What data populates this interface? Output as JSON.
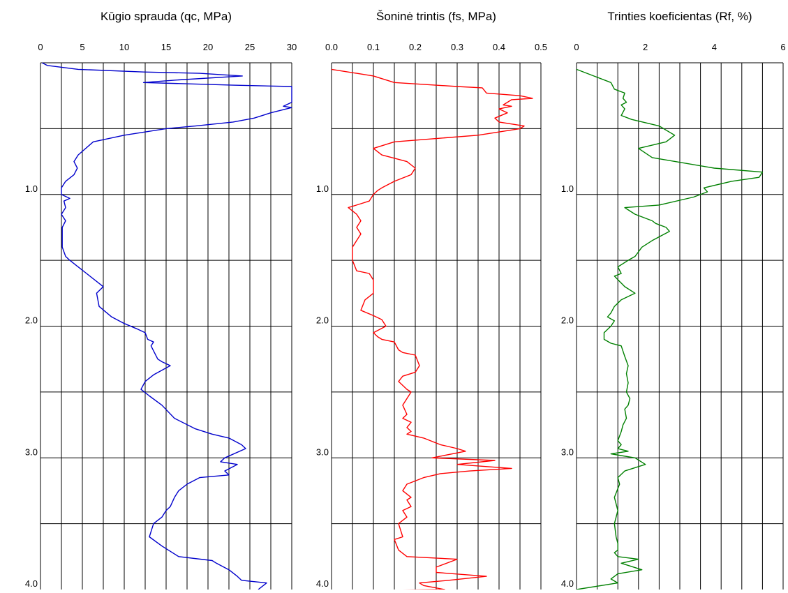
{
  "chart_data": [
    {
      "type": "line",
      "title": "Kūgio sprauda (qc, MPa)",
      "xlim": [
        0,
        30
      ],
      "ylim": [
        0,
        4.0
      ],
      "y_inverted": true,
      "grid": true,
      "xticks": [
        "0",
        "5",
        "10",
        "15",
        "20",
        "25",
        "30"
      ],
      "xtick_values": [
        0,
        5,
        10,
        15,
        20,
        25,
        30
      ],
      "yticks": [
        "1.0",
        "2.0",
        "3.0",
        "4.0"
      ],
      "ytick_values": [
        1.0,
        2.0,
        3.0,
        4.0
      ],
      "color": "#0000cc",
      "series": [
        {
          "x": [
            0.2,
            0.8,
            4.5,
            12.3,
            19.0,
            24.1,
            16.5,
            12.3,
            23.0,
            30.0,
            30.0,
            30.0,
            29.0,
            30.0,
            27.5,
            25.5,
            23.0,
            18.5,
            15.0,
            10.0,
            6.3,
            4.5,
            4.0,
            4.4,
            4.0,
            3.0,
            2.5,
            2.5,
            3.5,
            2.8,
            3.0,
            2.5,
            3.0,
            2.6,
            2.6,
            3.0,
            3.5,
            4.5,
            5.5,
            7.5,
            6.7,
            7.0,
            8.5,
            10.0,
            11.5,
            12.5,
            12.8,
            13.5,
            13.2,
            14.0,
            14.5,
            15.5,
            13.5,
            12.5,
            12.0,
            13.0,
            14.5,
            16.0,
            18.5,
            20.5,
            22.5,
            24.0,
            24.5,
            22.0,
            21.5,
            23.5,
            22.0,
            22.5,
            19.0,
            17.5,
            16.5,
            16.0,
            15.5,
            15.0,
            14.5,
            13.5,
            13.0,
            14.5,
            16.5,
            20.5,
            21.0,
            22.5,
            23.5,
            24.0,
            27.0,
            26.0
          ],
          "y": [
            0.0,
            0.02,
            0.05,
            0.07,
            0.08,
            0.1,
            0.13,
            0.15,
            0.17,
            0.18,
            0.19,
            0.3,
            0.33,
            0.34,
            0.38,
            0.42,
            0.45,
            0.48,
            0.5,
            0.55,
            0.6,
            0.7,
            0.75,
            0.8,
            0.85,
            0.9,
            0.95,
            1.0,
            1.03,
            1.05,
            1.1,
            1.15,
            1.2,
            1.25,
            1.4,
            1.47,
            1.5,
            1.55,
            1.6,
            1.7,
            1.75,
            1.85,
            1.93,
            1.98,
            2.02,
            2.05,
            2.1,
            2.12,
            2.15,
            2.25,
            2.27,
            2.3,
            2.37,
            2.42,
            2.48,
            2.53,
            2.6,
            2.7,
            2.78,
            2.82,
            2.85,
            2.9,
            2.93,
            3.0,
            3.03,
            3.05,
            3.1,
            3.13,
            3.15,
            3.2,
            3.25,
            3.3,
            3.37,
            3.4,
            3.45,
            3.5,
            3.6,
            3.67,
            3.75,
            3.78,
            3.8,
            3.85,
            3.9,
            3.93,
            3.95,
            4.0
          ]
        }
      ]
    },
    {
      "type": "line",
      "title": "Šoninė trintis (fs, MPa)",
      "xlim": [
        0,
        0.5
      ],
      "ylim": [
        0,
        4.0
      ],
      "y_inverted": true,
      "grid": true,
      "xticks": [
        "0.0",
        "0.1",
        "0.2",
        "0.3",
        "0.4",
        "0.5"
      ],
      "xtick_values": [
        0,
        0.1,
        0.2,
        0.3,
        0.4,
        0.5
      ],
      "yticks": [
        "1.0",
        "2.0",
        "3.0",
        "4.0"
      ],
      "ytick_values": [
        1.0,
        2.0,
        3.0,
        4.0
      ],
      "color": "#ff0000",
      "series": [
        {
          "x": [
            0.0,
            0.06,
            0.1,
            0.12,
            0.15,
            0.3,
            0.36,
            0.37,
            0.45,
            0.48,
            0.43,
            0.41,
            0.43,
            0.4,
            0.42,
            0.39,
            0.4,
            0.46,
            0.45,
            0.35,
            0.15,
            0.1,
            0.12,
            0.18,
            0.2,
            0.19,
            0.15,
            0.12,
            0.11,
            0.1,
            0.09,
            0.07,
            0.04,
            0.06,
            0.07,
            0.06,
            0.07,
            0.06,
            0.05,
            0.05,
            0.06,
            0.09,
            0.1,
            0.1,
            0.08,
            0.07,
            0.1,
            0.12,
            0.13,
            0.1,
            0.11,
            0.12,
            0.15,
            0.16,
            0.17,
            0.2,
            0.21,
            0.2,
            0.17,
            0.16,
            0.18,
            0.19,
            0.17,
            0.18,
            0.17,
            0.19,
            0.18,
            0.19,
            0.18,
            0.22,
            0.26,
            0.3,
            0.32,
            0.24,
            0.39,
            0.3,
            0.43,
            0.33,
            0.26,
            0.22,
            0.18,
            0.17,
            0.19,
            0.18,
            0.19,
            0.17,
            0.18,
            0.16,
            0.17,
            0.15,
            0.16,
            0.18,
            0.3,
            0.25,
            0.25,
            0.37,
            0.28,
            0.21,
            0.22,
            0.27,
            0.0
          ],
          "y": [
            0.05,
            0.08,
            0.1,
            0.12,
            0.15,
            0.18,
            0.19,
            0.23,
            0.25,
            0.27,
            0.28,
            0.32,
            0.33,
            0.35,
            0.38,
            0.42,
            0.45,
            0.48,
            0.5,
            0.55,
            0.6,
            0.65,
            0.7,
            0.75,
            0.8,
            0.85,
            0.9,
            0.95,
            0.97,
            1.0,
            1.05,
            1.07,
            1.1,
            1.15,
            1.2,
            1.25,
            1.3,
            1.35,
            1.4,
            1.5,
            1.58,
            1.6,
            1.65,
            1.75,
            1.8,
            1.88,
            1.92,
            1.95,
            2.0,
            2.05,
            2.08,
            2.1,
            2.12,
            2.18,
            2.2,
            2.22,
            2.3,
            2.35,
            2.38,
            2.42,
            2.48,
            2.5,
            2.6,
            2.67,
            2.7,
            2.73,
            2.77,
            2.8,
            2.82,
            2.85,
            2.9,
            2.93,
            2.95,
            3.0,
            3.02,
            3.05,
            3.08,
            3.1,
            3.12,
            3.15,
            3.2,
            3.25,
            3.3,
            3.32,
            3.37,
            3.4,
            3.45,
            3.5,
            3.6,
            3.62,
            3.7,
            3.75,
            3.77,
            3.83,
            3.87,
            3.9,
            3.93,
            3.95,
            3.97,
            4.0,
            4.01
          ]
        }
      ]
    },
    {
      "type": "line",
      "title": "Trinties koeficientas (Rf, %)",
      "xlim": [
        0,
        6
      ],
      "ylim": [
        0,
        4.0
      ],
      "y_inverted": true,
      "grid": true,
      "xticks": [
        "0",
        "2",
        "4",
        "6"
      ],
      "xtick_values": [
        0,
        2,
        4,
        6
      ],
      "yticks": [
        "1.0",
        "2.0",
        "3.0",
        "4.0"
      ],
      "ytick_values": [
        1.0,
        2.0,
        3.0,
        4.0
      ],
      "color": "#008000",
      "series": [
        {
          "x": [
            0.0,
            0.5,
            1.0,
            1.1,
            1.4,
            1.35,
            1.45,
            1.3,
            1.4,
            1.3,
            1.6,
            2.4,
            2.85,
            2.6,
            1.8,
            2.2,
            4.0,
            5.4,
            5.3,
            4.5,
            3.7,
            3.8,
            3.4,
            2.4,
            1.4,
            1.7,
            2.2,
            2.3,
            2.6,
            2.7,
            2.2,
            1.9,
            1.7,
            1.5,
            1.2,
            1.3,
            1.1,
            1.4,
            1.7,
            1.3,
            1.1,
            1.0,
            0.9,
            1.1,
            1.0,
            0.8,
            0.8,
            1.0,
            1.3,
            1.4,
            1.5,
            1.45,
            1.5,
            1.45,
            1.55,
            1.5,
            1.4,
            1.45,
            1.35,
            1.3,
            1.2,
            1.3,
            1.2,
            1.5,
            1.0,
            1.7,
            2.0,
            1.4,
            1.2,
            1.25,
            1.1,
            1.2,
            1.1,
            1.15,
            1.2,
            1.2,
            1.1,
            1.2,
            1.8,
            1.3,
            1.9,
            1.2,
            1.0,
            1.2,
            0.0
          ],
          "y": [
            0.05,
            0.1,
            0.15,
            0.2,
            0.23,
            0.27,
            0.3,
            0.32,
            0.35,
            0.4,
            0.43,
            0.48,
            0.55,
            0.6,
            0.65,
            0.72,
            0.8,
            0.83,
            0.87,
            0.9,
            0.95,
            0.98,
            1.02,
            1.08,
            1.1,
            1.15,
            1.2,
            1.22,
            1.25,
            1.28,
            1.35,
            1.4,
            1.47,
            1.5,
            1.55,
            1.6,
            1.62,
            1.7,
            1.75,
            1.8,
            1.85,
            1.9,
            1.93,
            1.96,
            2.0,
            2.05,
            2.1,
            2.13,
            2.15,
            2.23,
            2.3,
            2.36,
            2.43,
            2.5,
            2.55,
            2.6,
            2.63,
            2.7,
            2.75,
            2.8,
            2.87,
            2.9,
            2.93,
            2.95,
            2.97,
            3.0,
            3.05,
            3.1,
            3.15,
            3.2,
            3.3,
            3.4,
            3.5,
            3.6,
            3.65,
            3.7,
            3.72,
            3.75,
            3.77,
            3.8,
            3.85,
            3.88,
            3.92,
            3.95,
            4.0
          ]
        }
      ]
    }
  ]
}
